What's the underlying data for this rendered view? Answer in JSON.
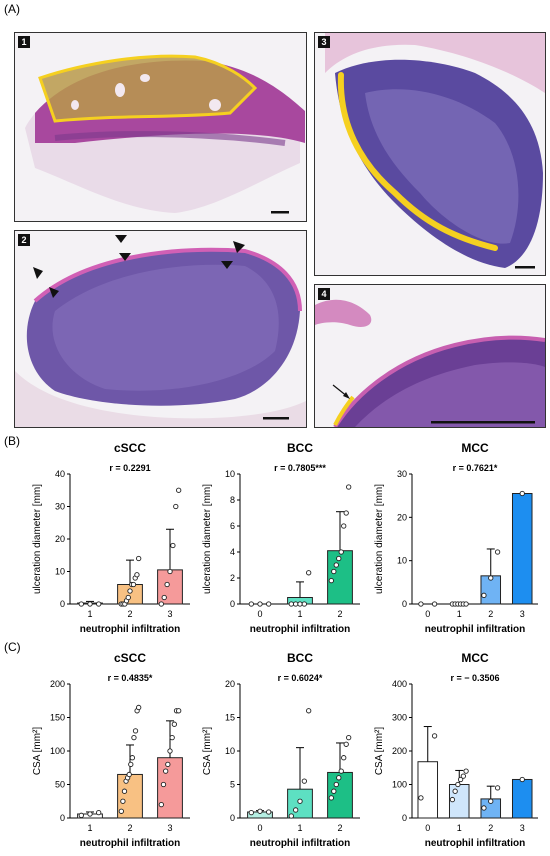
{
  "labels": {
    "A": "(A)",
    "B": "(B)",
    "C": "(C)"
  },
  "panels": [
    {
      "num": "1"
    },
    {
      "num": "2"
    },
    {
      "num": "3"
    },
    {
      "num": "4"
    }
  ],
  "colors": {
    "cSCC": [
      "#ffffff",
      "#f8c183",
      "#f59a9a"
    ],
    "BCC": [
      "#b6efe3",
      "#5de0c2",
      "#1dbf86"
    ],
    "MCC": [
      "#ffffff",
      "#cfe6fb",
      "#6fb3f4",
      "#1d8ef0"
    ],
    "annotation": "#f5d020"
  },
  "chart_data": [
    {
      "type": "bar",
      "id": "B-cSCC",
      "title": "cSCC",
      "stat": "r = 0.2291",
      "xlabel": "neutrophil infiltration",
      "ylabel": "ulceration diameter [mm]",
      "categories": [
        "1",
        "2",
        "3"
      ],
      "values": [
        0.3,
        6,
        10.5
      ],
      "sd": [
        0.5,
        7.5,
        12.5
      ],
      "ylim": [
        0,
        40
      ],
      "yticks": [
        "0",
        "10",
        "20",
        "30",
        "40"
      ],
      "points": [
        [
          0,
          0,
          0
        ],
        [
          0,
          0,
          0,
          1,
          2,
          4,
          6,
          6,
          8,
          9,
          14
        ],
        [
          0,
          2,
          6,
          10,
          18,
          30,
          35
        ]
      ]
    },
    {
      "type": "bar",
      "id": "B-BCC",
      "title": "BCC",
      "stat": "r = 0.7805***",
      "xlabel": "neutrophil infiltration",
      "ylabel": "ulceration diameter [mm]",
      "categories": [
        "0",
        "1",
        "2"
      ],
      "values": [
        0,
        0.5,
        4.1
      ],
      "sd": [
        0,
        1.2,
        3.0
      ],
      "ylim": [
        0,
        10
      ],
      "yticks": [
        "0",
        "2",
        "4",
        "6",
        "8",
        "10"
      ],
      "points": [
        [
          0,
          0,
          0
        ],
        [
          0,
          0,
          0,
          0,
          2.4
        ],
        [
          1.8,
          2.5,
          3,
          3.5,
          4,
          6,
          7,
          9
        ]
      ]
    },
    {
      "type": "bar",
      "id": "B-MCC",
      "title": "MCC",
      "stat": "r = 0.7621*",
      "xlabel": "neutrophil infiltration",
      "ylabel": "ulceration diameter [mm]",
      "categories": [
        "0",
        "1",
        "2",
        "3"
      ],
      "values": [
        0,
        0,
        6.5,
        25.5
      ],
      "sd": [
        0,
        0,
        6.2,
        0
      ],
      "ylim": [
        0,
        30
      ],
      "yticks": [
        "0",
        "10",
        "20",
        "30"
      ],
      "points": [
        [
          0,
          0
        ],
        [
          0,
          0,
          0,
          0,
          0,
          0
        ],
        [
          2,
          6,
          12
        ],
        [
          25.5
        ]
      ]
    },
    {
      "type": "bar",
      "id": "C-cSCC",
      "title": "cSCC",
      "stat": "r = 0.4835*",
      "xlabel": "neutrophil infiltration",
      "ylabel": "CSA [mm²]",
      "categories": [
        "1",
        "2",
        "3"
      ],
      "values": [
        6,
        65,
        90
      ],
      "sd": [
        3,
        44,
        55
      ],
      "ylim": [
        0,
        200
      ],
      "yticks": [
        "0",
        "50",
        "100",
        "150",
        "200"
      ],
      "points": [
        [
          4,
          6,
          8
        ],
        [
          10,
          25,
          40,
          55,
          60,
          65,
          80,
          90,
          120,
          130,
          160,
          165
        ],
        [
          20,
          50,
          70,
          80,
          100,
          120,
          140,
          160,
          160
        ]
      ]
    },
    {
      "type": "bar",
      "id": "C-BCC",
      "title": "BCC",
      "stat": "r = 0.6024*",
      "xlabel": "neutrophil infiltration",
      "ylabel": "CSA [mm²]",
      "categories": [
        "0",
        "1",
        "2"
      ],
      "values": [
        0.9,
        4.3,
        6.8
      ],
      "sd": [
        0.2,
        6.2,
        4.4
      ],
      "ylim": [
        0,
        20
      ],
      "yticks": [
        "0",
        "5",
        "10",
        "15",
        "20"
      ],
      "points": [
        [
          0.8,
          1.0,
          0.9
        ],
        [
          0.3,
          1.2,
          2.5,
          5.5,
          16
        ],
        [
          3,
          4,
          5,
          6,
          7,
          9,
          11,
          12
        ]
      ]
    },
    {
      "type": "bar",
      "id": "C-MCC",
      "title": "MCC",
      "stat": "r = − 0.3506",
      "xlabel": "neutrophil infiltration",
      "ylabel": "CSA [mm²]",
      "categories": [
        "0",
        "1",
        "2",
        "3"
      ],
      "values": [
        168,
        100,
        57,
        115
      ],
      "sd": [
        105,
        42,
        38,
        0
      ],
      "ylim": [
        0,
        400
      ],
      "yticks": [
        "0",
        "100",
        "200",
        "300",
        "400"
      ],
      "points": [
        [
          60,
          245
        ],
        [
          55,
          80,
          100,
          115,
          125,
          140
        ],
        [
          30,
          50,
          90
        ],
        [
          115
        ]
      ]
    }
  ]
}
